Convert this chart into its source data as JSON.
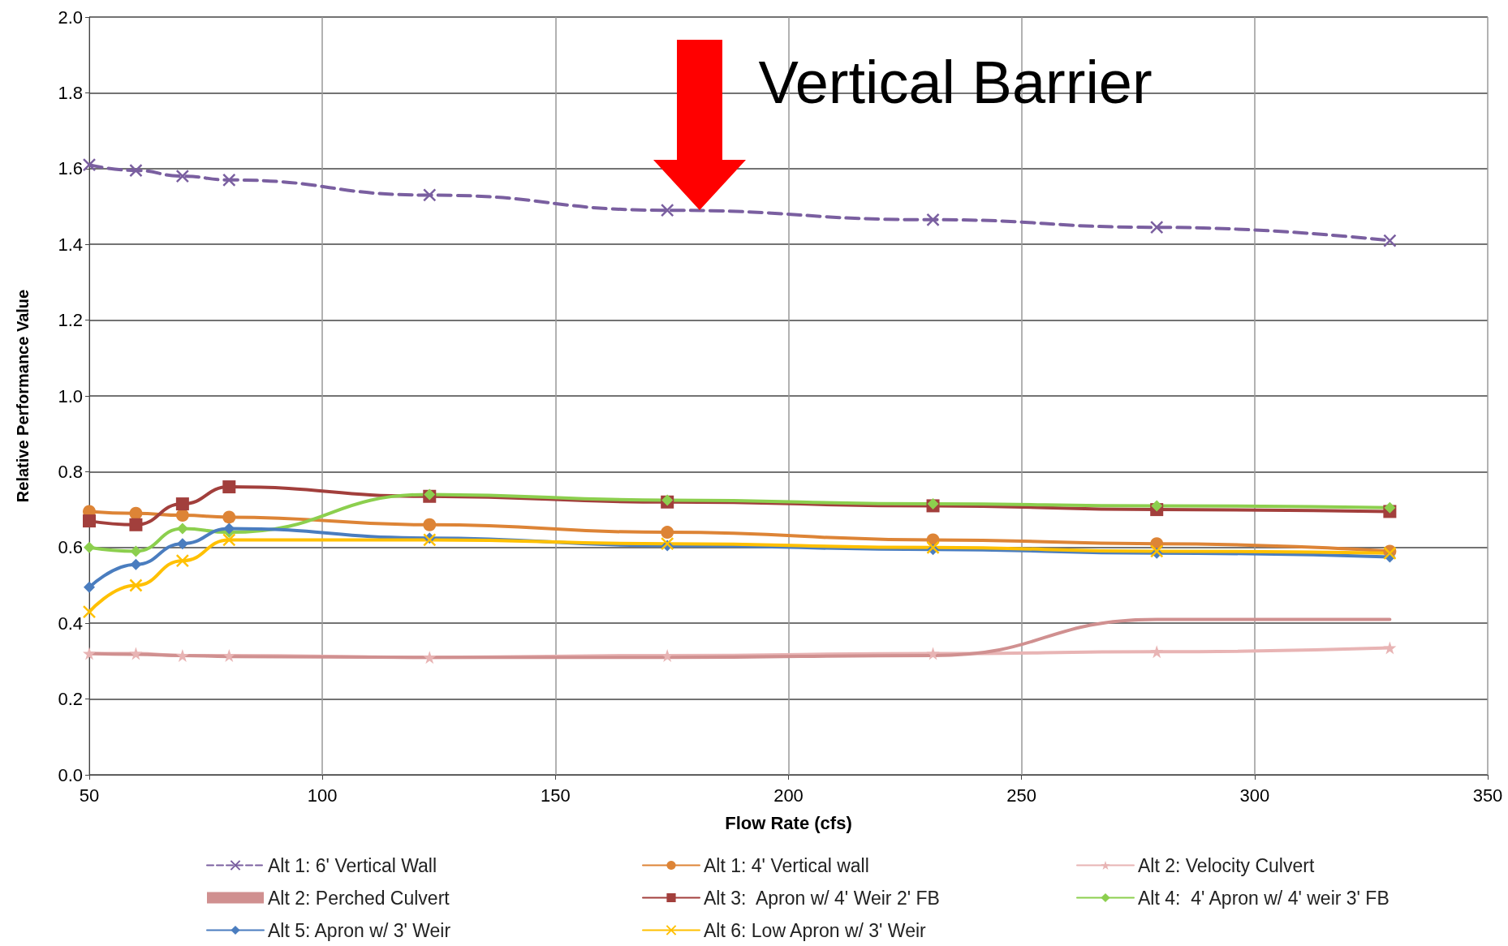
{
  "chart_data": {
    "type": "line",
    "xlabel": "Flow Rate (cfs)",
    "ylabel": "Relative Performance Value",
    "x": [
      50,
      60,
      70,
      80,
      123,
      174,
      231,
      279,
      329
    ],
    "xlim": [
      50,
      350
    ],
    "xticks": [
      50,
      100,
      150,
      200,
      250,
      300,
      350
    ],
    "ylim": [
      0,
      2
    ],
    "yticks": [
      {
        "value": 0,
        "label": "0.0"
      },
      0.2,
      0.4,
      0.6,
      0.8,
      {
        "value": 1,
        "label": "1.0"
      },
      1.2,
      1.4,
      1.6,
      1.8,
      {
        "value": 2,
        "label": "2.0"
      }
    ],
    "grid": true,
    "legend": "bottom",
    "annotations": [
      {
        "text": "Vertical Barrier",
        "x": 181,
        "y": 1.49
      }
    ],
    "series": [
      {
        "name": "Alt 1: 6' Vertical Wall",
        "color": "#7a5fa0",
        "marker": "cross",
        "line_style": "dashed",
        "values": [
          1.61,
          1.595,
          1.58,
          1.57,
          1.53,
          1.49,
          1.465,
          1.445,
          1.41
        ]
      },
      {
        "name": "Alt 1: 4' Vertical wall",
        "color": "#dd8436",
        "marker": "circle",
        "values": [
          0.695,
          0.69,
          0.685,
          0.68,
          0.66,
          0.64,
          0.62,
          0.61,
          0.59
        ]
      },
      {
        "name": "Alt 2: Velocity Culvert",
        "color": "#e8b4b4",
        "marker": "star",
        "values": [
          0.32,
          0.32,
          0.315,
          0.315,
          0.31,
          0.315,
          0.32,
          0.325,
          0.335
        ]
      },
      {
        "name": "Alt 2: Perched Culvert",
        "color": "#d09090",
        "marker": "none",
        "values": [
          0.32,
          0.318,
          0.315,
          0.312,
          0.31,
          0.31,
          0.315,
          0.41,
          0.41
        ]
      },
      {
        "name": "Alt 3:  Apron w/ 4' Weir 2' FB",
        "color": "#a23f3c",
        "marker": "square",
        "values": [
          0.67,
          0.66,
          0.715,
          0.76,
          0.735,
          0.72,
          0.71,
          0.7,
          0.695
        ]
      },
      {
        "name": "Alt 4:  4' Apron w/ 4' weir 3' FB",
        "color": "#8ccf4e",
        "marker": "diamond",
        "values": [
          0.6,
          0.59,
          0.65,
          0.64,
          0.74,
          0.725,
          0.715,
          0.71,
          0.705
        ]
      },
      {
        "name": "Alt 5: Apron w/ 3' Weir",
        "color": "#4a7dbf",
        "marker": "diamond",
        "values": [
          0.495,
          0.555,
          0.61,
          0.65,
          0.625,
          0.605,
          0.595,
          0.585,
          0.575
        ]
      },
      {
        "name": "Alt 6: Low Apron w/ 3' Weir",
        "color": "#ffc000",
        "marker": "cross",
        "values": [
          0.43,
          0.5,
          0.565,
          0.62,
          0.62,
          0.61,
          0.6,
          0.59,
          0.585
        ]
      }
    ]
  }
}
